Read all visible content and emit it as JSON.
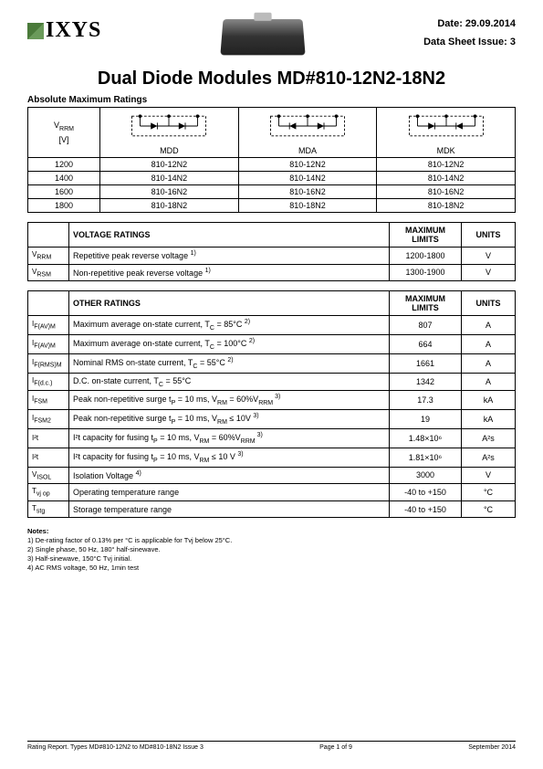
{
  "header": {
    "logo_text": "IXYS",
    "date_label": "Date: 29.09.2014",
    "issue_label": "Data Sheet Issue: 3"
  },
  "title": "Dual Diode Modules MD#810-12N2-18N2",
  "subtitle": "Absolute Maximum Ratings",
  "config_table": {
    "vrrm_header": "V",
    "vrrm_sub": "RRM",
    "vrrm_unit": "[V]",
    "cols": [
      "MDD",
      "MDA",
      "MDK"
    ],
    "rows": [
      {
        "v": "1200",
        "c": [
          "810-12N2",
          "810-12N2",
          "810-12N2"
        ]
      },
      {
        "v": "1400",
        "c": [
          "810-14N2",
          "810-14N2",
          "810-14N2"
        ]
      },
      {
        "v": "1600",
        "c": [
          "810-16N2",
          "810-16N2",
          "810-16N2"
        ]
      },
      {
        "v": "1800",
        "c": [
          "810-18N2",
          "810-18N2",
          "810-18N2"
        ]
      }
    ]
  },
  "voltage_ratings": {
    "heading": "VOLTAGE RATINGS",
    "limits_heading": "MAXIMUM LIMITS",
    "units_heading": "UNITS",
    "rows": [
      {
        "sym": "V",
        "sub": "RRM",
        "desc": "Repetitive peak reverse voltage ",
        "note": "1)",
        "limit": "1200-1800",
        "unit": "V"
      },
      {
        "sym": "V",
        "sub": "RSM",
        "desc": "Non-repetitive peak reverse voltage ",
        "note": "1)",
        "limit": "1300-1900",
        "unit": "V"
      }
    ]
  },
  "other_ratings": {
    "heading": "OTHER RATINGS",
    "limits_heading": "MAXIMUM LIMITS",
    "units_heading": "UNITS",
    "rows": [
      {
        "sym": "I",
        "sub": "F(AV)M",
        "desc": "Maximum average on-state current, T",
        "desc2": "C",
        "desc3": " = 85°C ",
        "note": "2)",
        "limit": "807",
        "unit": "A"
      },
      {
        "sym": "I",
        "sub": "F(AV)M",
        "desc": "Maximum average on-state current, T",
        "desc2": "C",
        "desc3": " = 100°C ",
        "note": "2)",
        "limit": "664",
        "unit": "A"
      },
      {
        "sym": "I",
        "sub": "F(RMS)M",
        "desc": "Nominal RMS on-state current, T",
        "desc2": "C",
        "desc3": " = 55°C ",
        "note": "2)",
        "limit": "1661",
        "unit": "A"
      },
      {
        "sym": "I",
        "sub": "F(d.c.)",
        "desc": "D.C. on-state current, T",
        "desc2": "C",
        "desc3": " = 55°C",
        "note": "",
        "limit": "1342",
        "unit": "A"
      },
      {
        "sym": "I",
        "sub": "FSM",
        "desc": "Peak non-repetitive surge t",
        "desc2": "P",
        "desc3": " = 10 ms, V",
        "desc4": "RM",
        "desc5": " = 60%V",
        "desc6": "RRM",
        "note": " 3)",
        "limit": "17.3",
        "unit": "kA"
      },
      {
        "sym": "I",
        "sub": "FSM2",
        "desc": "Peak non-repetitive surge t",
        "desc2": "P",
        "desc3": " = 10 ms, V",
        "desc4": "RM",
        "desc5": " ≤ 10V ",
        "note": "3)",
        "limit": "19",
        "unit": "kA"
      },
      {
        "sym": "I²t",
        "sub": "",
        "desc": "I²t capacity for fusing t",
        "desc2": "P",
        "desc3": " = 10 ms, V",
        "desc4": "RM",
        "desc5": " = 60%V",
        "desc6": "RRM",
        "note": " 3)",
        "limit": "1.48×10⁶",
        "unit": "A²s"
      },
      {
        "sym": "I²t",
        "sub": "",
        "desc": "I²t capacity for fusing t",
        "desc2": "P",
        "desc3": " = 10 ms, V",
        "desc4": "RM",
        "desc5": " ≤ 10 V ",
        "note": "3)",
        "limit": "1.81×10⁶",
        "unit": "A²s"
      },
      {
        "sym": "V",
        "sub": "ISOL",
        "desc": "Isolation Voltage ",
        "note": "4)",
        "limit": "3000",
        "unit": "V"
      },
      {
        "sym": "T",
        "sub": "vj op",
        "desc": "Operating temperature range",
        "note": "",
        "limit": "-40 to +150",
        "unit": "°C"
      },
      {
        "sym": "T",
        "sub": "stg",
        "desc": "Storage temperature range",
        "note": "",
        "limit": "-40 to +150",
        "unit": "°C"
      }
    ]
  },
  "notes": {
    "heading": "Notes:",
    "items": [
      "1)   De-rating factor of 0.13% per °C is applicable for Tvj below 25°C.",
      "2)   Single phase, 50 Hz, 180° half-sinewave.",
      "3)   Half-sinewave, 150°C Tvj initial.",
      "4)   AC RMS voltage, 50 Hz, 1min test"
    ]
  },
  "footer": {
    "left": "Rating Report. Types MD#810-12N2 to MD#810-18N2 Issue 3",
    "center": "Page 1 of 9",
    "right": "September 2014"
  }
}
